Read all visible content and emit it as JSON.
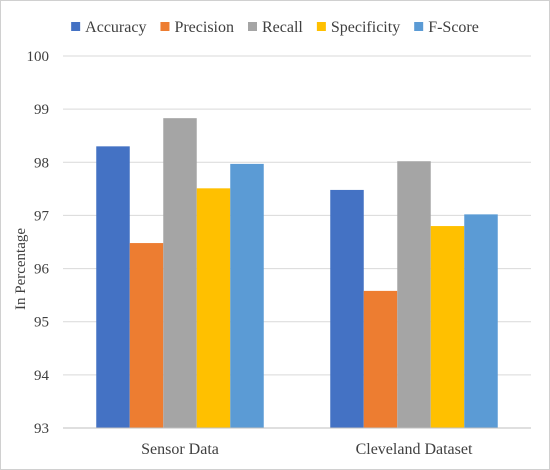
{
  "chart_data": {
    "type": "bar",
    "title": "",
    "xlabel": "",
    "ylabel": "In Percentage",
    "ylim": [
      93,
      100
    ],
    "yticks": [
      93,
      94,
      95,
      96,
      97,
      98,
      99,
      100
    ],
    "grid": true,
    "legend_position": "top",
    "categories": [
      "Sensor Data",
      "Cleveland Dataset"
    ],
    "series": [
      {
        "name": "Accuracy",
        "color": "#4472C4",
        "values": [
          98.3,
          97.48
        ]
      },
      {
        "name": "Precision",
        "color": "#ED7D31",
        "values": [
          96.48,
          95.58
        ]
      },
      {
        "name": "Recall",
        "color": "#A5A5A5",
        "values": [
          98.83,
          98.02
        ]
      },
      {
        "name": "Specificity",
        "color": "#FFC000",
        "values": [
          97.51,
          96.8
        ]
      },
      {
        "name": "F-Score",
        "color": "#5B9BD5",
        "values": [
          97.97,
          97.02
        ]
      }
    ]
  }
}
